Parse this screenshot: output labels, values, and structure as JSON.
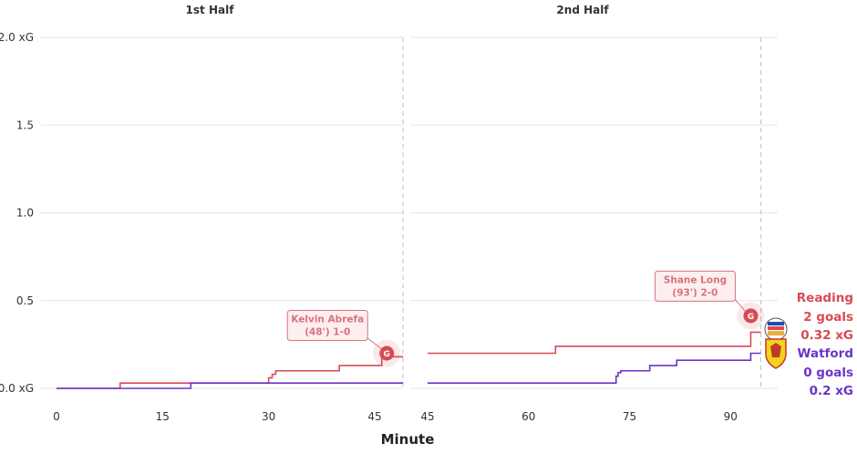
{
  "colors": {
    "home": "#d94a56",
    "away": "#6a35c9",
    "grid": "#e6e6e6",
    "annotation": "#d9737a",
    "annotation_bg": "#fdeef0"
  },
  "chart_data": {
    "type": "line",
    "xlabel": "Minute",
    "y_ticks": [
      {
        "value": 0,
        "label": "0.0 xG"
      },
      {
        "value": 0.5,
        "label": "0.5"
      },
      {
        "value": 1.0,
        "label": "1.0"
      },
      {
        "value": 1.5,
        "label": "1.5"
      },
      {
        "value": 2.0,
        "label": "2.0 xG"
      }
    ],
    "ylim": [
      0,
      2.0
    ],
    "panels": [
      {
        "title": "1st Half",
        "xlim": [
          0,
          49
        ],
        "x_ticks": [
          0,
          15,
          30,
          45
        ],
        "end_minute": 49,
        "series": [
          {
            "team": "home",
            "x": [
              0,
              9,
              30,
              30.5,
              31,
              40,
              46,
              49
            ],
            "y": [
              0,
              0.03,
              0.06,
              0.08,
              0.1,
              0.13,
              0.18,
              0.18
            ]
          },
          {
            "team": "away",
            "x": [
              0,
              19,
              49
            ],
            "y": [
              0,
              0.03,
              0.03
            ]
          }
        ],
        "goals": [
          {
            "team": "home",
            "minute": 48,
            "xg": 0.2,
            "label_line1": "Kelvin Abrefa",
            "label_line2": "(48') 1-0",
            "marker": "G"
          }
        ]
      },
      {
        "title": "2nd Half",
        "xlim": [
          45,
          97
        ],
        "x_ticks": [
          45,
          60,
          75,
          90
        ],
        "end_minute": 94.5,
        "series": [
          {
            "team": "home",
            "x": [
              45,
              64,
              93,
              94.5
            ],
            "y": [
              0.2,
              0.24,
              0.32,
              0.32
            ]
          },
          {
            "team": "away",
            "x": [
              45,
              73,
              73.3,
              73.7,
              78,
              82,
              93,
              94.5
            ],
            "y": [
              0.03,
              0.07,
              0.09,
              0.1,
              0.13,
              0.16,
              0.2,
              0.2
            ]
          }
        ],
        "goals": [
          {
            "team": "home",
            "minute": 93,
            "xg": 0.32,
            "label_line1": "Shane Long",
            "label_line2": "(93') 2-0",
            "marker": "G"
          }
        ]
      }
    ],
    "legend": [
      {
        "team": "home",
        "name": "Reading",
        "goals": "2 goals",
        "xg": "0.32 xG",
        "crest": "reading-crest-icon"
      },
      {
        "team": "away",
        "name": "Watford",
        "goals": "0 goals",
        "xg": "0.2 xG",
        "crest": "watford-crest-icon"
      }
    ]
  }
}
